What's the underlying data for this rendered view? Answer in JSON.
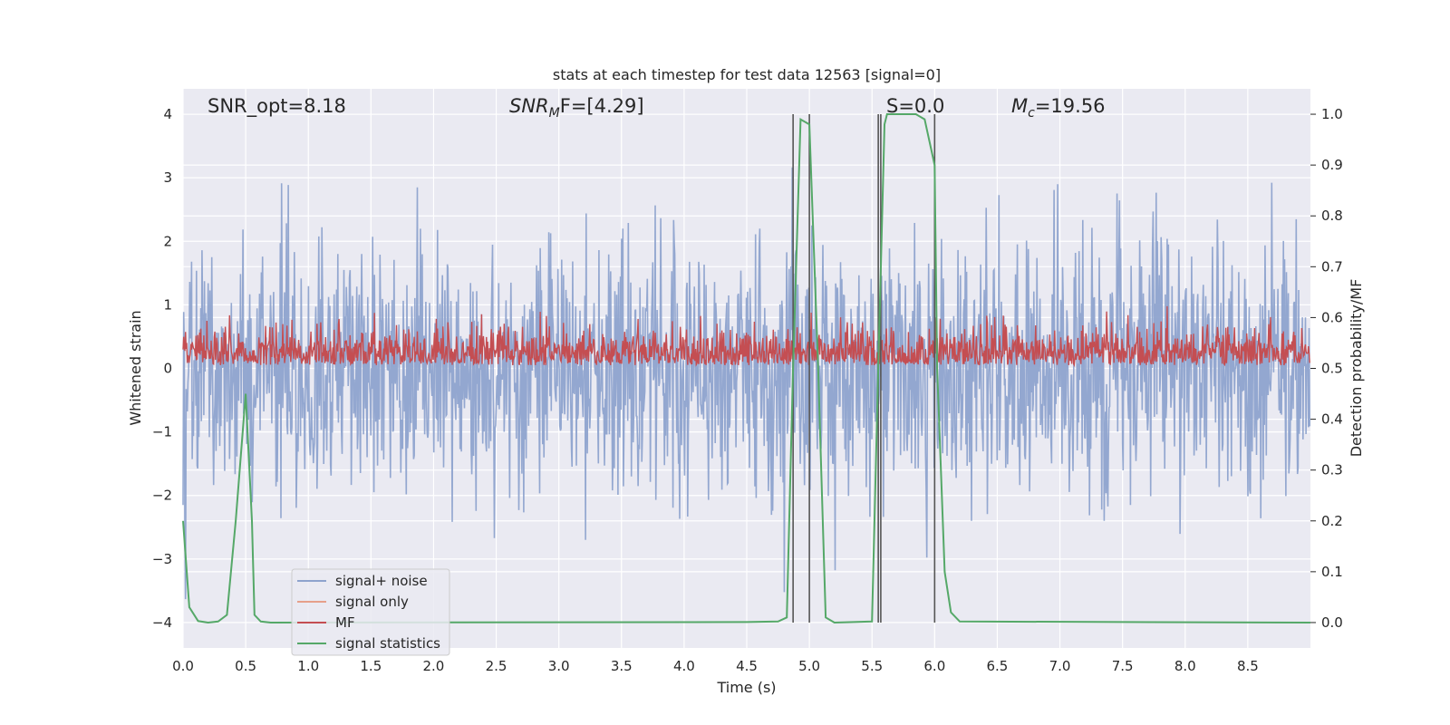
{
  "chart_data": {
    "type": "line",
    "title": "stats at each timestep for test data 12563 [signal=0]",
    "xlabel": "Time (s)",
    "ylabel_left": "Whitened strain",
    "ylabel_right": "Detection probability/MF",
    "xlim": [
      0.0,
      9.0
    ],
    "ylim_left": [
      -4.4,
      4.4
    ],
    "ylim_right": [
      -0.05,
      1.05
    ],
    "x_ticks": [
      0.0,
      0.5,
      1.0,
      1.5,
      2.0,
      2.5,
      3.0,
      3.5,
      4.0,
      4.5,
      5.0,
      5.5,
      6.0,
      6.5,
      7.0,
      7.5,
      8.0,
      8.5
    ],
    "x_tick_labels": [
      "0.0",
      "0.5",
      "1.0",
      "1.5",
      "2.0",
      "2.5",
      "3.0",
      "3.5",
      "4.0",
      "4.5",
      "5.0",
      "5.5",
      "6.0",
      "6.5",
      "7.0",
      "7.5",
      "8.0",
      "8.5"
    ],
    "y_left_ticks": [
      -4,
      -3,
      -2,
      -1,
      0,
      1,
      2,
      3,
      4
    ],
    "y_left_tick_labels": [
      "−4",
      "−3",
      "−2",
      "−1",
      "0",
      "1",
      "2",
      "3",
      "4"
    ],
    "y_right_ticks": [
      0.0,
      0.1,
      0.2,
      0.3,
      0.4,
      0.5,
      0.6,
      0.7,
      0.8,
      0.9,
      1.0
    ],
    "y_right_tick_labels": [
      "0.0",
      "0.1",
      "0.2",
      "0.3",
      "0.4",
      "0.5",
      "0.6",
      "0.7",
      "0.8",
      "0.9",
      "1.0"
    ],
    "grid": true,
    "legend_position": "lower-left",
    "series": [
      {
        "name": "signal+ noise",
        "axis": "left",
        "color": "#8ea3cd",
        "description_range": [
          -3.9,
          3.6
        ],
        "sample_rate_hz": 204.8
      },
      {
        "name": "signal only",
        "axis": "left",
        "color": "#e6a08a",
        "values_range": [
          0,
          0
        ]
      },
      {
        "name": "MF",
        "axis": "left",
        "color": "#c44e52",
        "values_range": [
          0.0,
          1.0
        ]
      },
      {
        "name": "signal statistics",
        "axis": "right",
        "color": "#55a868",
        "x": [
          0.0,
          0.05,
          0.12,
          0.2,
          0.28,
          0.35,
          0.42,
          0.5,
          0.55,
          0.57,
          0.62,
          0.7,
          4.5,
          4.75,
          4.82,
          4.87,
          4.93,
          5.0,
          5.07,
          5.13,
          5.2,
          5.5,
          5.55,
          5.6,
          5.62,
          5.7,
          5.85,
          5.92,
          6.0,
          6.02,
          6.08,
          6.13,
          6.2,
          9.0
        ],
        "values": [
          0.2,
          0.03,
          0.003,
          0.0,
          0.002,
          0.015,
          0.2,
          0.45,
          0.2,
          0.015,
          0.002,
          0.0,
          0.001,
          0.002,
          0.01,
          0.5,
          0.99,
          0.98,
          0.5,
          0.01,
          0.0,
          0.002,
          0.5,
          0.98,
          1.0,
          1.0,
          1.0,
          0.99,
          0.9,
          0.5,
          0.1,
          0.02,
          0.002,
          0.0
        ]
      }
    ],
    "vertical_lines_x": [
      4.87,
      5.0,
      5.55,
      5.57,
      6.0
    ],
    "annotations": [
      {
        "text": "SNR_opt=8.18",
        "x": 0.2,
        "y": 4.1
      },
      {
        "text_base": "SNR",
        "text_sub": "M",
        "text_rest": "F=[4.29]",
        "x": 2.6,
        "y": 4.1
      },
      {
        "text": "S=0.0",
        "x": 5.6,
        "y": 4.1
      },
      {
        "text_base": "M",
        "text_sub": "c",
        "text_rest": "=19.56",
        "x": 6.6,
        "y": 4.1
      }
    ]
  }
}
